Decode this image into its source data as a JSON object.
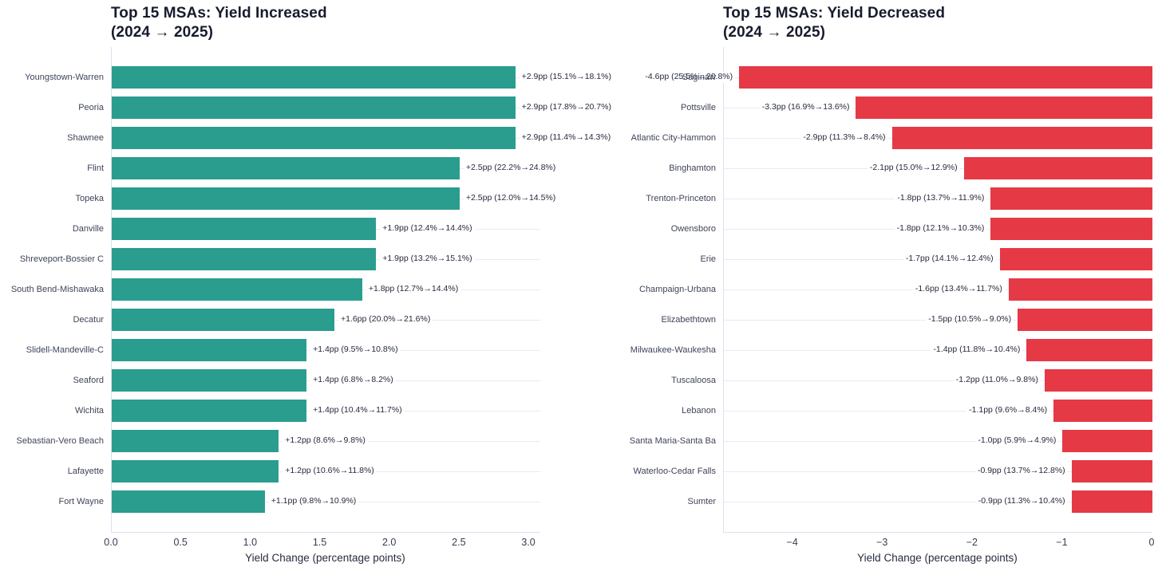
{
  "figure": {
    "background": "#ffffff"
  },
  "chart_data": [
    {
      "type": "bar",
      "orientation": "horizontal",
      "title": "Top 15 MSAs: Yield Increased\n(2024 → 2025)",
      "xlabel": "Yield Change (percentage points)",
      "bar_color": "#2a9d8f",
      "grid": true,
      "legend": "none",
      "xlim": [
        0,
        3.08
      ],
      "xticks": [
        0,
        0.5,
        1.0,
        1.5,
        2.0,
        2.5,
        3.0
      ],
      "xtick_labels": [
        "0.0",
        "0.5",
        "1.0",
        "1.5",
        "2.0",
        "2.5",
        "3.0"
      ],
      "categories": [
        "Youngstown-Warren",
        "Peoria",
        "Shawnee",
        "Flint",
        "Topeka",
        "Danville",
        "Shreveport-Bossier C",
        "South Bend-Mishawaka",
        "Decatur",
        "Slidell-Mandeville-C",
        "Seaford",
        "Wichita",
        "Sebastian-Vero Beach",
        "Lafayette",
        "Fort Wayne"
      ],
      "values": [
        2.9,
        2.9,
        2.9,
        2.5,
        2.5,
        1.9,
        1.9,
        1.8,
        1.6,
        1.4,
        1.4,
        1.4,
        1.2,
        1.2,
        1.1
      ],
      "bar_labels": [
        "+2.9pp (15.1%→18.1%)",
        "+2.9pp (17.8%→20.7%)",
        "+2.9pp (11.4%→14.3%)",
        "+2.5pp (22.2%→24.8%)",
        "+2.5pp (12.0%→14.5%)",
        "+1.9pp (12.4%→14.4%)",
        "+1.9pp (13.2%→15.1%)",
        "+1.8pp (12.7%→14.4%)",
        "+1.6pp (20.0%→21.6%)",
        "+1.4pp (9.5%→10.8%)",
        "+1.4pp (6.8%→8.2%)",
        "+1.4pp (10.4%→11.7%)",
        "+1.2pp (8.6%→9.8%)",
        "+1.2pp (10.6%→11.8%)",
        "+1.1pp (9.8%→10.9%)"
      ]
    },
    {
      "type": "bar",
      "orientation": "horizontal",
      "title": "Top 15 MSAs: Yield Decreased\n(2024 → 2025)",
      "xlabel": "Yield Change (percentage points)",
      "bar_color": "#e63946",
      "grid": true,
      "legend": "none",
      "xlim": [
        -4.77,
        0
      ],
      "xticks": [
        -4,
        -3,
        -2,
        -1,
        0
      ],
      "xtick_labels": [
        "−4",
        "−3",
        "−2",
        "−1",
        "0"
      ],
      "categories": [
        "Saginaw",
        "Pottsville",
        "Atlantic City-Hammon",
        "Binghamton",
        "Trenton-Princeton",
        "Owensboro",
        "Erie",
        "Champaign-Urbana",
        "Elizabethtown",
        "Milwaukee-Waukesha",
        "Tuscaloosa",
        "Lebanon",
        "Santa Maria-Santa Ba",
        "Waterloo-Cedar Falls",
        "Sumter"
      ],
      "values": [
        -4.6,
        -3.3,
        -2.9,
        -2.1,
        -1.8,
        -1.8,
        -1.7,
        -1.6,
        -1.5,
        -1.4,
        -1.2,
        -1.1,
        -1.0,
        -0.9,
        -0.9
      ],
      "bar_labels": [
        "-4.6pp (25.5%→20.8%)",
        "-3.3pp (16.9%→13.6%)",
        "-2.9pp (11.3%→8.4%)",
        "-2.1pp (15.0%→12.9%)",
        "-1.8pp (13.7%→11.9%)",
        "-1.8pp (12.1%→10.3%)",
        "-1.7pp (14.1%→12.4%)",
        "-1.6pp (13.4%→11.7%)",
        "-1.5pp (10.5%→9.0%)",
        "-1.4pp (11.8%→10.4%)",
        "-1.2pp (11.0%→9.8%)",
        "-1.1pp (9.6%→8.4%)",
        "-1.0pp (5.9%→4.9%)",
        "-0.9pp (13.7%→12.8%)",
        "-0.9pp (11.3%→10.4%)"
      ]
    }
  ]
}
